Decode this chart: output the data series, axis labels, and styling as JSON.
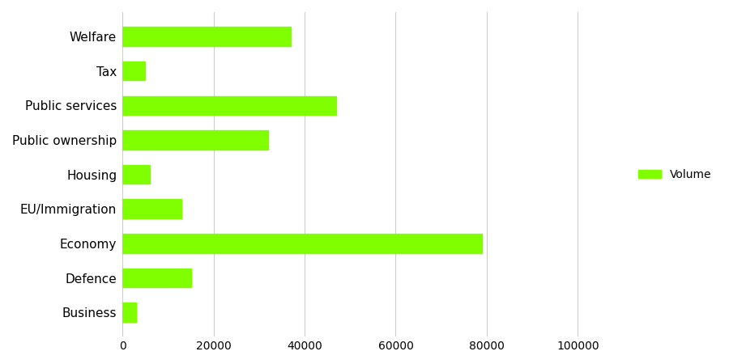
{
  "categories": [
    "Welfare",
    "Tax",
    "Public services",
    "Public ownership",
    "Housing",
    "EU/Immigration",
    "Economy",
    "Defence",
    "Business"
  ],
  "values": [
    37000,
    5000,
    47000,
    32000,
    6000,
    13000,
    79000,
    15000,
    3000
  ],
  "bar_color": "#7FFF00",
  "bar_edgecolor": "#7FFF00",
  "legend_label": "Volume",
  "legend_color": "#7FFF00",
  "xlim": [
    0,
    110000
  ],
  "xticks": [
    0,
    20000,
    40000,
    60000,
    80000,
    100000
  ],
  "xticklabels": [
    "0",
    "20000",
    "40000",
    "60000",
    "80000",
    "100000"
  ],
  "grid_color": "#cccccc",
  "background_color": "#ffffff",
  "bar_height": 0.55,
  "figsize": [
    9.0,
    4.5
  ],
  "dpi": 100
}
